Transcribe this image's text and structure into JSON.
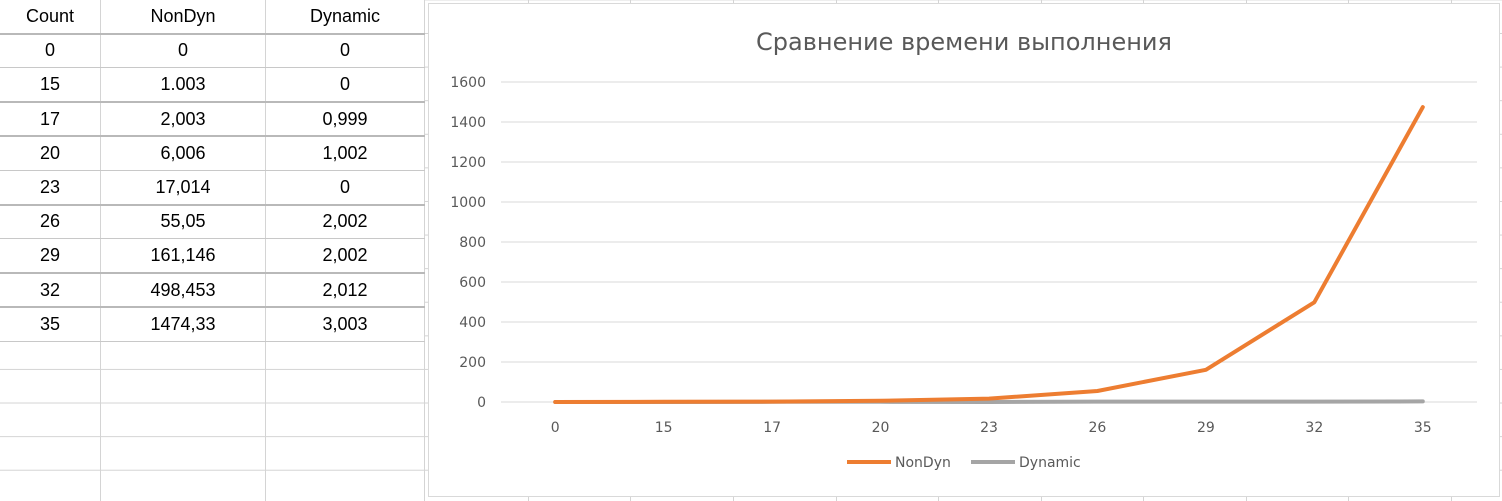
{
  "table": {
    "headers": [
      "Count",
      "NonDyn",
      "Dynamic"
    ],
    "rows": [
      [
        "0",
        "0",
        "0"
      ],
      [
        "15",
        "1.003",
        "0"
      ],
      [
        "17",
        "2,003",
        "0,999"
      ],
      [
        "20",
        "6,006",
        "1,002"
      ],
      [
        "23",
        "17,014",
        "0"
      ],
      [
        "26",
        "55,05",
        "2,002"
      ],
      [
        "29",
        "161,146",
        "2,002"
      ],
      [
        "32",
        "498,453",
        "2,012"
      ],
      [
        "35",
        "1474,33",
        "3,003"
      ]
    ]
  },
  "chart_data": {
    "type": "line",
    "title": "Сравнение времени выполнения",
    "categories": [
      "0",
      "15",
      "17",
      "20",
      "23",
      "26",
      "29",
      "32",
      "35"
    ],
    "series": [
      {
        "name": "NonDyn",
        "color": "#ED7D31",
        "values": [
          0,
          1.003,
          2.003,
          6.006,
          17.014,
          55.05,
          161.146,
          498.453,
          1474.33
        ]
      },
      {
        "name": "Dynamic",
        "color": "#A5A5A5",
        "values": [
          0,
          0,
          0.999,
          1.002,
          0,
          2.002,
          2.002,
          2.012,
          3.003
        ]
      }
    ],
    "ylim": [
      0,
      1600
    ],
    "yticks": [
      "0",
      "200",
      "400",
      "600",
      "800",
      "1000",
      "1200",
      "1400",
      "1600"
    ],
    "grid": true,
    "legend": "bottom"
  }
}
